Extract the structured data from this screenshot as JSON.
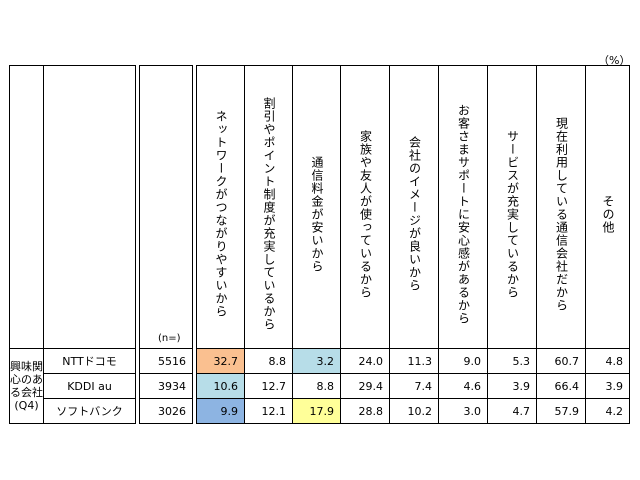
{
  "unit": "（%）",
  "n_label": "(n=)",
  "group_label": "興味関心のある会社(Q4)",
  "columns": [
    "ネットワークがつながりやすいから",
    "割引やポイント制度が充実しているから",
    "通信料金が安いから",
    "家族や友人が使っているから",
    "会社のイメージが良いから",
    "お客さまサポートに安心感があるから",
    "サービスが充実しているから",
    "現在利用している通信会社だから",
    "その他"
  ],
  "rows": [
    {
      "company": "NTTドコモ",
      "n": "5516",
      "values": [
        "32.7",
        "8.8",
        "3.2",
        "24.0",
        "11.3",
        "9.0",
        "5.3",
        "60.7",
        "4.8"
      ]
    },
    {
      "company": "KDDI au",
      "n": "3934",
      "values": [
        "10.6",
        "12.7",
        "8.8",
        "29.4",
        "7.4",
        "4.6",
        "3.9",
        "66.4",
        "3.9"
      ]
    },
    {
      "company": "ソフトバンク",
      "n": "3026",
      "values": [
        "9.9",
        "12.1",
        "17.9",
        "28.8",
        "10.2",
        "3.0",
        "4.7",
        "57.9",
        "4.2"
      ]
    }
  ],
  "highlight_colors": {
    "orange": "#fac090",
    "light_blue": "#b7dde8",
    "blue": "#8db4e2",
    "yellow": "#ffff99"
  }
}
